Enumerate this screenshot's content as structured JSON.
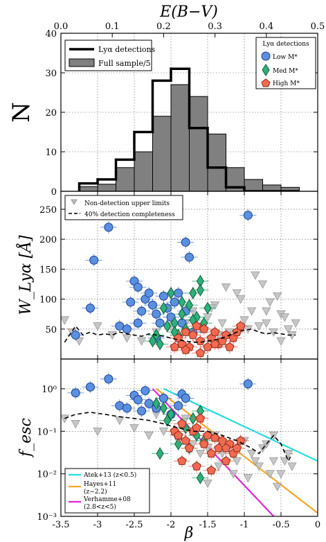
{
  "figure": {
    "top_axis": {
      "label": "E(B−V)",
      "ticks": [
        0.0,
        0.1,
        0.2,
        0.3,
        0.4,
        0.5
      ],
      "tick_labels": [
        "0.0",
        "0.1",
        "0.2",
        "0.3",
        "0.4",
        "0.5"
      ]
    },
    "x_axis": {
      "label": "β",
      "ticks": [
        -3.5,
        -3,
        -2.5,
        -2,
        -1.5,
        -1,
        -0.5,
        0
      ],
      "tick_labels": [
        "-3.5",
        "-3",
        "-2.5",
        "-2",
        "-1.5",
        "-1",
        "-0.5",
        "0"
      ],
      "range": [
        -3.5,
        0
      ]
    },
    "colors": {
      "low": "#5b8fe0",
      "med": "#2fb07a",
      "high": "#f26a50",
      "atek": "#22dddd",
      "hayes": "#f5a623",
      "verhamme": "#e524d6",
      "hist_fill": "#808080",
      "upper": "#bdbdbd"
    }
  },
  "chart_data": [
    {
      "type": "bar",
      "ylabel": "N",
      "ylim": [
        0,
        40
      ],
      "yticks": [
        0,
        10,
        20,
        30,
        40
      ],
      "grid": true,
      "legend": {
        "placement": "top-left",
        "entries": [
          "Lyα detections",
          "Full sample/5"
        ]
      },
      "bin_edges": [
        -3.25,
        -3.0,
        -2.75,
        -2.5,
        -2.25,
        -2.0,
        -1.75,
        -1.5,
        -1.25,
        -1.0,
        -0.75,
        -0.5,
        -0.25
      ],
      "series": [
        {
          "name": "Full sample/5",
          "style": "filled",
          "values": [
            1.2,
            1.8,
            6,
            10,
            19,
            27,
            24,
            14.5,
            6,
            3,
            1.6,
            1
          ]
        },
        {
          "name": "Lyα detections",
          "style": "step",
          "values": [
            2,
            3,
            8,
            15,
            28,
            31,
            16,
            6,
            1,
            0,
            0,
            0
          ]
        }
      ]
    },
    {
      "type": "scatter",
      "ylabel": "W_Lyα [Å]",
      "ylim": [
        0,
        280
      ],
      "yticks": [
        50,
        100,
        150,
        200,
        250
      ],
      "legend": {
        "placement": "top-left",
        "entries": [
          "Non-detection upper limits",
          "40% detection completeness"
        ]
      },
      "mass_legend": {
        "title": "Lyα detections",
        "entries": [
          "Low M*",
          "Med M*",
          "High M*"
        ]
      },
      "completeness_curve": {
        "x": [
          -3.45,
          -3.3,
          -3.2,
          -3.1,
          -3.0,
          -2.9,
          -2.8,
          -2.7,
          -2.6,
          -2.5,
          -2.4,
          -2.3,
          -2.2,
          -2.1,
          -2.0,
          -1.9,
          -1.8,
          -1.7,
          -1.6,
          -1.5,
          -1.4,
          -1.3,
          -1.2,
          -1.1,
          -1.0,
          -0.9,
          -0.8,
          -0.7,
          -0.6,
          -0.5,
          -0.4,
          -0.3
        ],
        "y": [
          28,
          55,
          40,
          45,
          40,
          42,
          40,
          45,
          42,
          40,
          38,
          42,
          40,
          38,
          35,
          32,
          30,
          28,
          28,
          30,
          32,
          35,
          40,
          45,
          48,
          50,
          45,
          42,
          44,
          42,
          40,
          40
        ]
      },
      "series": [
        {
          "name": "Low M*",
          "x": [
            -3.3,
            -3.1,
            -3.05,
            -2.85,
            -2.7,
            -2.5,
            -2.45,
            -2.4,
            -2.35,
            -2.3,
            -2.25,
            -2.2,
            -2.15,
            -2.1,
            -2.05,
            -2.0,
            -1.95,
            -1.9,
            -1.85,
            -1.8,
            -1.75,
            -1.7,
            -0.95,
            -2.55,
            -2.6,
            -2.45,
            -2.2,
            -1.8
          ],
          "y": [
            40,
            85,
            165,
            220,
            55,
            130,
            120,
            80,
            100,
            110,
            90,
            75,
            60,
            105,
            85,
            70,
            95,
            110,
            60,
            195,
            170,
            45,
            240,
            95,
            50,
            60,
            35,
            80
          ]
        },
        {
          "name": "Med M*",
          "x": [
            -2.1,
            -2.0,
            -1.95,
            -1.9,
            -1.85,
            -1.8,
            -1.75,
            -1.7,
            -1.65,
            -1.6,
            -1.55,
            -2.2,
            -2.15,
            -2.05,
            -1.85,
            -1.7,
            -1.6,
            -1.5,
            -2.25,
            -1.95
          ],
          "y": [
            85,
            110,
            60,
            40,
            75,
            50,
            90,
            110,
            70,
            130,
            60,
            40,
            25,
            55,
            95,
            65,
            115,
            85,
            30,
            45
          ]
        },
        {
          "name": "High M*",
          "x": [
            -1.95,
            -1.9,
            -1.85,
            -1.8,
            -1.75,
            -1.7,
            -1.65,
            -1.6,
            -1.55,
            -1.5,
            -1.45,
            -1.4,
            -1.35,
            -1.3,
            -1.25,
            -1.2,
            -1.15,
            -1.1,
            -1.05,
            -1.8,
            -1.6,
            -1.4
          ],
          "y": [
            20,
            35,
            25,
            45,
            20,
            40,
            55,
            30,
            50,
            20,
            35,
            45,
            25,
            30,
            40,
            20,
            35,
            45,
            55,
            15,
            10,
            25
          ]
        },
        {
          "name": "Non-detection upper limits",
          "x": [
            -3.45,
            -3.35,
            -3.25,
            -3.0,
            -2.8,
            -2.6,
            -2.4,
            -2.2,
            -2.0,
            -1.9,
            -1.8,
            -1.7,
            -1.6,
            -1.5,
            -1.4,
            -1.3,
            -1.2,
            -1.1,
            -1.0,
            -0.9,
            -0.8,
            -0.7,
            -0.6,
            -0.5,
            -0.4,
            -0.35,
            -1.25,
            -1.05,
            -0.85,
            -0.65,
            -0.45,
            -1.45,
            -1.15,
            -0.95,
            -0.75,
            -0.55,
            -0.3,
            -1.35,
            -0.7,
            -0.5
          ],
          "y": [
            65,
            45,
            30,
            55,
            40,
            35,
            30,
            45,
            55,
            35,
            60,
            80,
            50,
            70,
            90,
            60,
            45,
            110,
            65,
            80,
            55,
            60,
            45,
            75,
            50,
            40,
            120,
            100,
            140,
            95,
            70,
            85,
            35,
            50,
            125,
            105,
            60,
            40,
            80,
            30
          ]
        }
      ]
    },
    {
      "type": "scatter",
      "ylabel": "f_esc",
      "yscale": "log",
      "ylim": [
        0.001,
        5
      ],
      "yticks": [
        0.001,
        0.01,
        0.1,
        1
      ],
      "ytick_labels": [
        "10⁻³",
        "10⁻²",
        "10⁻¹",
        "10⁰"
      ],
      "legend": {
        "placement": "bottom-left",
        "entries": [
          "Atek+13 (z<0.5)",
          "Hayes+11",
          "(z~2.2)",
          "Verhamme+08",
          "(2.8<z<5)"
        ]
      },
      "models": [
        {
          "name": "Atek+13 (z<0.5)",
          "color": "#22dddd",
          "x": [
            -2.1,
            0
          ],
          "y": [
            1.0,
            0.02
          ]
        },
        {
          "name": "Hayes+11 (z~2.2)",
          "color": "#f5a623",
          "x": [
            -2.2,
            0
          ],
          "y": [
            1.0,
            0.0012
          ]
        },
        {
          "name": "Verhamme+08 (2.8<z<5)",
          "color": "#e524d6",
          "x": [
            -2.25,
            -0.6
          ],
          "y": [
            1.0,
            0.001
          ]
        }
      ],
      "completeness_curve": {
        "x": [
          -3.45,
          -3.3,
          -3.1,
          -2.9,
          -2.7,
          -2.5,
          -2.3,
          -2.1,
          -1.9,
          -1.7,
          -1.5,
          -1.3,
          -1.1,
          -0.9,
          -0.8,
          -0.7,
          -0.6,
          -0.5,
          -0.4,
          -0.35
        ],
        "y": [
          0.2,
          0.25,
          0.28,
          0.25,
          0.22,
          0.2,
          0.18,
          0.15,
          0.12,
          0.1,
          0.1,
          0.08,
          0.06,
          0.04,
          0.03,
          0.05,
          0.08,
          0.05,
          0.02,
          0.03
        ]
      },
      "series": [
        {
          "name": "Low M*",
          "x": [
            -3.3,
            -3.1,
            -2.85,
            -2.7,
            -2.5,
            -2.45,
            -2.4,
            -2.3,
            -2.2,
            -2.1,
            -2.0,
            -1.9,
            -1.85,
            -1.8,
            -0.95,
            -2.6,
            -2.35
          ],
          "y": [
            0.8,
            1.1,
            1.7,
            0.4,
            0.7,
            0.55,
            0.3,
            0.45,
            0.35,
            0.6,
            0.25,
            0.4,
            0.75,
            0.6,
            1.3,
            0.35,
            0.9
          ]
        },
        {
          "name": "Med M*",
          "x": [
            -2.2,
            -2.1,
            -2.0,
            -1.95,
            -1.9,
            -1.85,
            -1.8,
            -1.7,
            -1.65,
            -1.6,
            -1.55,
            -2.05,
            -1.75,
            -1.6,
            -2.15
          ],
          "y": [
            0.45,
            0.35,
            0.25,
            0.1,
            0.05,
            0.15,
            0.12,
            0.2,
            0.08,
            0.3,
            0.06,
            0.18,
            0.04,
            0.008,
            0.03
          ]
        },
        {
          "name": "High M*",
          "x": [
            -1.95,
            -1.9,
            -1.85,
            -1.8,
            -1.75,
            -1.7,
            -1.65,
            -1.6,
            -1.55,
            -1.5,
            -1.45,
            -1.4,
            -1.35,
            -1.3,
            -1.25,
            -1.2,
            -1.15,
            -1.1,
            -1.05,
            -1.85,
            -1.65,
            -1.45,
            -1.25
          ],
          "y": [
            0.1,
            0.08,
            0.15,
            0.06,
            0.04,
            0.1,
            0.12,
            0.2,
            0.05,
            0.08,
            0.03,
            0.07,
            0.04,
            0.06,
            0.02,
            0.05,
            0.03,
            0.04,
            0.06,
            0.02,
            0.015,
            0.012,
            0.04
          ]
        },
        {
          "name": "Non-detection upper limits",
          "x": [
            -3.45,
            -3.3,
            -3.0,
            -2.7,
            -2.5,
            -2.3,
            -2.1,
            -1.9,
            -1.7,
            -1.5,
            -1.3,
            -1.1,
            -0.9,
            -0.8,
            -0.7,
            -0.6,
            -0.5,
            -0.4,
            -1.4,
            -1.2,
            -1.0,
            -0.85,
            -0.65,
            -0.45,
            -1.6,
            -1.35,
            -1.15,
            -0.95,
            -0.75,
            -0.55,
            -2.2,
            -1.8,
            -0.6,
            -0.35,
            -1.5
          ],
          "y": [
            0.2,
            0.15,
            0.1,
            0.18,
            0.12,
            0.08,
            0.1,
            0.06,
            0.05,
            0.04,
            0.03,
            0.02,
            0.03,
            0.015,
            0.05,
            0.02,
            0.01,
            0.03,
            0.08,
            0.04,
            0.06,
            0.02,
            0.01,
            0.02,
            0.03,
            0.015,
            0.01,
            0.008,
            0.04,
            0.005,
            0.25,
            0.2,
            0.08,
            0.015,
            0.006
          ]
        }
      ]
    }
  ]
}
